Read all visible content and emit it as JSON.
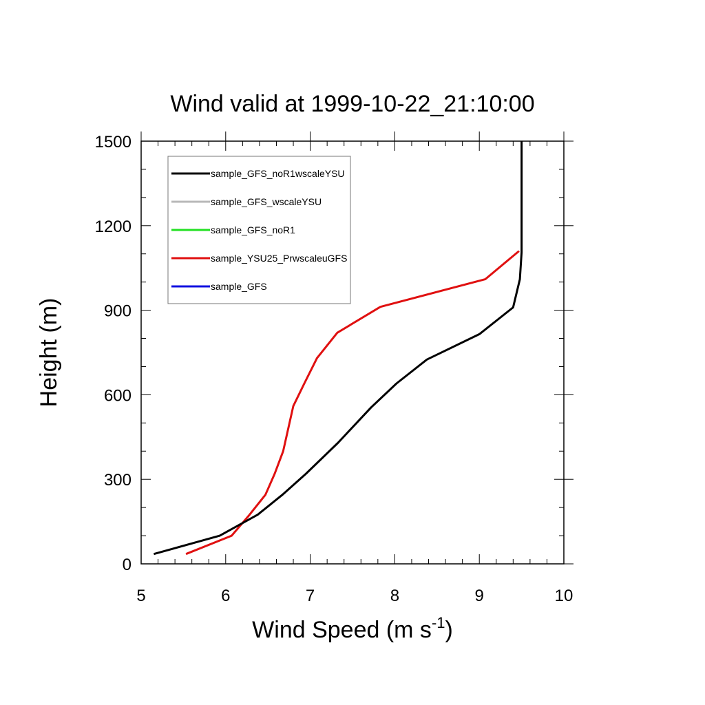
{
  "chart_data": {
    "type": "line",
    "title": "Wind valid at 1999-10-22_21:10:00",
    "xlabel": "Wind Speed (m s",
    "xlabel_superscript": "-1",
    "xlabel_suffix": ")",
    "ylabel": "Height (m)",
    "xlim": [
      5,
      10
    ],
    "ylim": [
      0,
      1500
    ],
    "x_ticks": [
      5,
      6,
      7,
      8,
      9,
      10
    ],
    "y_ticks": [
      0,
      300,
      600,
      900,
      1200,
      1500
    ],
    "x_tick_labels": [
      "5",
      "6",
      "7",
      "8",
      "9",
      "10"
    ],
    "y_tick_labels": [
      "0",
      "300",
      "600",
      "900",
      "1200",
      "1500"
    ],
    "grid": false,
    "legend_position": "top-left",
    "series": [
      {
        "name": "sample_GFS_noR1wscaleYSU",
        "color": "#000000",
        "points": [
          [
            5.15,
            35
          ],
          [
            5.93,
            100
          ],
          [
            6.38,
            175
          ],
          [
            6.67,
            245
          ],
          [
            6.95,
            320
          ],
          [
            7.33,
            430
          ],
          [
            7.72,
            555
          ],
          [
            8.02,
            640
          ],
          [
            8.38,
            725
          ],
          [
            9.0,
            815
          ],
          [
            9.4,
            910
          ],
          [
            9.48,
            1010
          ],
          [
            9.5,
            1105
          ],
          [
            9.5,
            1500
          ]
        ]
      },
      {
        "name": "sample_GFS_wscaleYSU",
        "color": "#b8b8b8",
        "points": []
      },
      {
        "name": "sample_GFS_noR1",
        "color": "#22e022",
        "points": []
      },
      {
        "name": "sample_YSU25_PrwscaleuGFS",
        "color": "#e01010",
        "points": [
          [
            5.53,
            35
          ],
          [
            6.07,
            100
          ],
          [
            6.27,
            170
          ],
          [
            6.47,
            245
          ],
          [
            6.58,
            320
          ],
          [
            6.68,
            400
          ],
          [
            6.8,
            560
          ],
          [
            6.93,
            640
          ],
          [
            7.08,
            730
          ],
          [
            7.32,
            820
          ],
          [
            7.83,
            912
          ],
          [
            9.07,
            1010
          ],
          [
            9.47,
            1110
          ]
        ]
      },
      {
        "name": "sample_GFS",
        "color": "#1010e0",
        "points": []
      }
    ]
  }
}
